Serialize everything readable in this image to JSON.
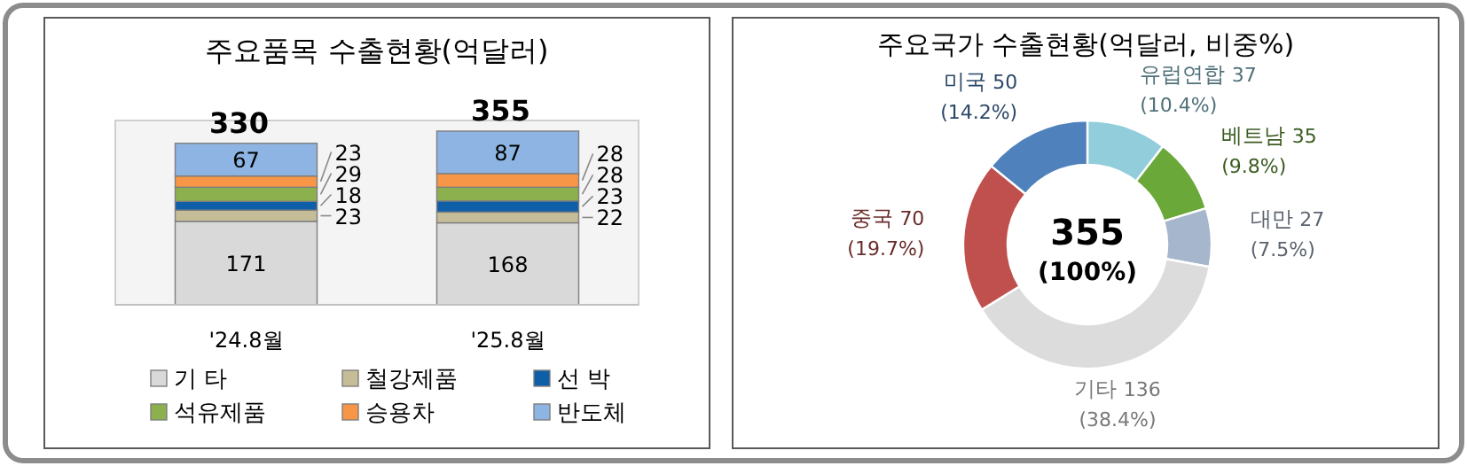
{
  "chart_data": [
    {
      "type": "bar",
      "title": "주요품목 수출현황(억달러)",
      "stacked": true,
      "data_labels": true,
      "legend": "bottom",
      "categories": [
        "'24.8월",
        "'25.8월"
      ],
      "totals": [
        "330",
        "355"
      ],
      "series": [
        {
          "name": "기 타",
          "color": "#d9d9d9",
          "values": [
            171,
            168
          ]
        },
        {
          "name": "철강제품",
          "color": "#c4bd97",
          "values": [
            23,
            22
          ]
        },
        {
          "name": "선 박",
          "color": "#0f5fa8",
          "values": [
            18,
            23
          ]
        },
        {
          "name": "석유제품",
          "color": "#8db04f",
          "values": [
            29,
            28
          ]
        },
        {
          "name": "승용차",
          "color": "#f79646",
          "values": [
            23,
            28
          ]
        },
        {
          "name": "반도체",
          "color": "#8db4e2",
          "values": [
            67,
            87
          ]
        }
      ]
    },
    {
      "type": "donut",
      "title": "주요국가 수출현황(억달러, 비중%)",
      "categories": [
        "유럽연합",
        "베트남",
        "대만",
        "기타",
        "중국",
        "미국"
      ],
      "values": [
        37,
        35,
        27,
        136,
        70,
        50
      ],
      "colors": [
        "#92cddc",
        "#6aa83a",
        "#a6b6cc",
        "#dcdcdc",
        "#c0504d",
        "#4f81bd"
      ],
      "value_labels": [
        "37\n(10.4%)",
        "35\n(9.8%)",
        "27\n(7.5%)",
        "136\n(38.4%)",
        "70\n(19.7%)",
        "50\n(14.2%)"
      ],
      "annotations": [
        "355",
        "(100%)"
      ]
    }
  ]
}
